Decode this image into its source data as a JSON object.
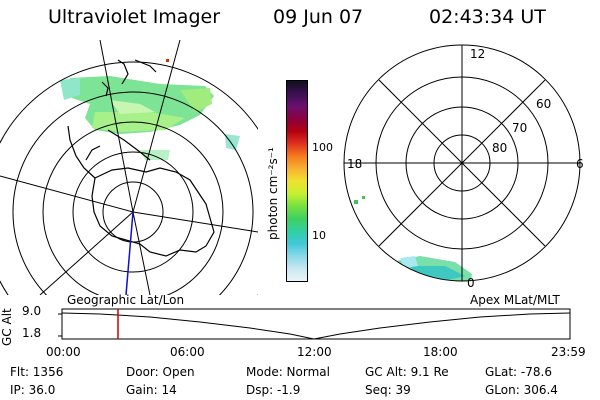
{
  "header": {
    "instrument": "Ultraviolet Imager",
    "date": "09 Jun 07",
    "time": "02:43:34 UT"
  },
  "colorbar": {
    "unit_label": "photon cm⁻²s⁻¹",
    "ticks": [
      "100",
      "10"
    ],
    "colors": [
      "#101020",
      "#3a1050",
      "#6a1070",
      "#8a0040",
      "#b00010",
      "#e03020",
      "#f57a20",
      "#f8b030",
      "#f0e030",
      "#c8f030",
      "#78e040",
      "#40d060",
      "#30d0a0",
      "#40c8d8",
      "#8ad8e8",
      "#c8e8f0",
      "#e8f4f8"
    ]
  },
  "left_map": {
    "label": "Geographic Lat/Lon",
    "marker_color": "#cc3300"
  },
  "right_map": {
    "label": "Apex MLat/MLT",
    "mlt_labels": {
      "top": "12",
      "left": "18",
      "right": "6",
      "bottom": "0"
    },
    "lat_labels": [
      "60",
      "70",
      "80"
    ]
  },
  "altitude_panel": {
    "axis_label": "GC Alt",
    "y_ticks": [
      "9.0",
      "1.8"
    ],
    "x_ticks": [
      "00:00",
      "06:00",
      "12:00",
      "18:00",
      "23:59"
    ],
    "current_time_color": "#cc0000"
  },
  "info": {
    "flt": "Flt: 1356",
    "ip": "IP: 36.0",
    "door": "Door: Open",
    "gain": "Gain: 14",
    "mode": "Mode: Normal",
    "dsp": "Dsp:    -1.9",
    "gc_alt": "GC Alt: 9.1 Re",
    "seq": "Seq: 39",
    "glat": "GLat: -78.6",
    "glon": "GLon: 306.4"
  }
}
